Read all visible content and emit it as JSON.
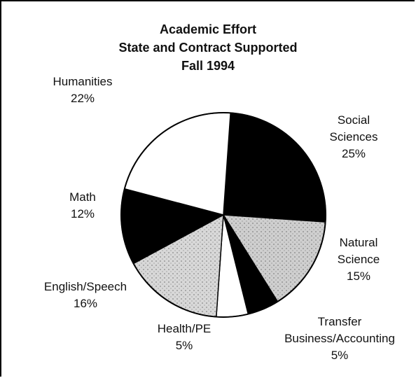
{
  "chart_data": {
    "type": "pie",
    "title": "Academic Effort",
    "subtitle": "State and Contract Supported",
    "period": "Fall 1994",
    "categories": [
      "Social Sciences",
      "Natural Science",
      "Transfer Business/Accounting",
      "Health/PE",
      "English/Speech",
      "Math",
      "Humanities"
    ],
    "values": [
      25,
      15,
      5,
      5,
      16,
      12,
      22
    ],
    "value_labels": [
      "25%",
      "15%",
      "5%",
      "5%",
      "16%",
      "12%",
      "22%"
    ],
    "colors": [
      "#000000",
      "#cfcfcf",
      "#000000",
      "#ffffff",
      "#d8d8d8",
      "#000000",
      "#ffffff"
    ]
  }
}
